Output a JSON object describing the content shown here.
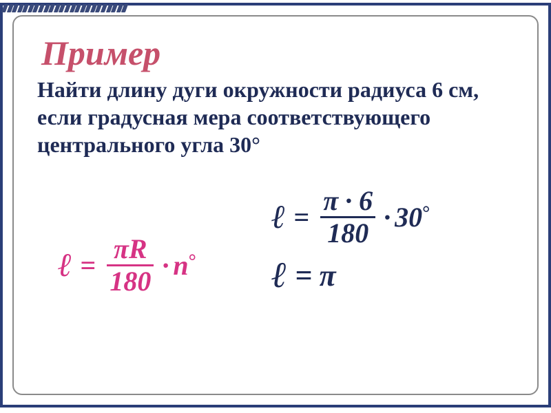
{
  "title": "Пример",
  "problem": "Найти длину дуги окружности радиуса 6 см, если градусная мера соответствующего центрального угла 30°",
  "formula_general": {
    "lhs": "ℓ",
    "frac_num_a": "π",
    "frac_num_b": "R",
    "frac_den": "180",
    "tail": "n",
    "tail_deg": "°"
  },
  "formula_sub": {
    "lhs": "ℓ",
    "frac_num": "π · 6",
    "frac_den": "180",
    "tail": "30",
    "tail_deg": "°"
  },
  "formula_result": {
    "lhs": "ℓ",
    "rhs": "π"
  },
  "colors": {
    "frame": "#2b3e78",
    "inner_border": "#8a8a8a",
    "title": "#c6506b",
    "body": "#1f2b55",
    "accent": "#d63384"
  },
  "fonts": {
    "title_pt": 50,
    "body_pt": 32,
    "formula_pt": 40
  }
}
